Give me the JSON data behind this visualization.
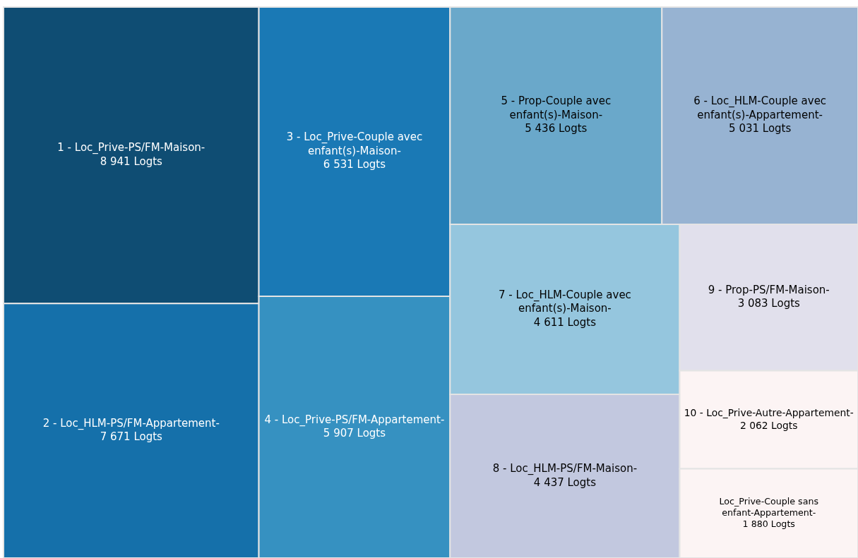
{
  "chart_data": {
    "type": "other",
    "categories": [
      "1 - Loc_Prive-PS/FM-Maison-",
      "2 - Loc_HLM-PS/FM-Appartement-",
      "3 - Loc_Prive-Couple avec enfant(s)-Maison-",
      "4 - Loc_Prive-PS/FM-Appartement-",
      "5 - Prop-Couple avec enfant(s)-Maison-",
      "6 - Loc_HLM-Couple avec enfant(s)-Appartement-",
      "7 - Loc_HLM-Couple avec enfant(s)-Maison-",
      "8 - Loc_HLM-PS/FM-Maison-",
      "9 - Prop-PS/FM-Maison-",
      "10 - Loc_Prive-Autre-Appartement-",
      "Loc_Prive-Couple sans enfant-Appartement-"
    ],
    "values": [
      8941,
      7671,
      6531,
      5907,
      5436,
      5031,
      4611,
      4437,
      3083,
      2062,
      1880
    ],
    "value_labels": [
      "8 941 Logts",
      "7 671 Logts",
      "6 531 Logts",
      "5 907 Logts",
      "5 436 Logts",
      "5 031 Logts",
      "4 611 Logts",
      "4 437 Logts",
      "3 083 Logts",
      "2 062 Logts",
      "1 880 Logts"
    ],
    "colors": [
      "#0f4d73",
      "#1570aa",
      "#1a79b5",
      "#3691c1",
      "#6aa8ca",
      "#97b3d2",
      "#95c6de",
      "#c2c8df",
      "#e1e0ec",
      "#fcf4f4",
      "#fcf4f4"
    ]
  }
}
